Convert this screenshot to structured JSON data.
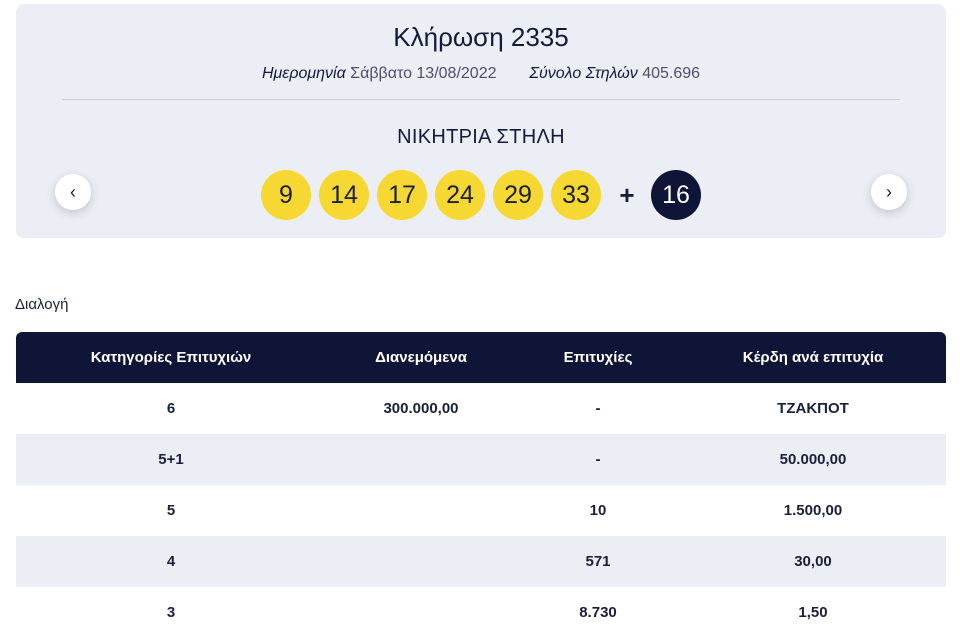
{
  "draw": {
    "title": "Κλήρωση 2335",
    "date_label": "Ημερομηνία",
    "date_value": "Σάββατο 13/08/2022",
    "total_label": "Σύνολο Στηλών",
    "total_value": "405.696",
    "winning_title": "ΝΙΚΗΤΡΙΑ ΣΤΗΛΗ",
    "numbers": [
      "9",
      "14",
      "17",
      "24",
      "29",
      "33"
    ],
    "plus": "+",
    "bonus": "16",
    "prev_icon": "‹",
    "next_icon": "›"
  },
  "section_label": "Διαλογή",
  "table": {
    "headers": [
      "Κατηγορίες Επιτυχιών",
      "Διανεμόμενα",
      "Επιτυχίες",
      "Κέρδη ανά επιτυχία"
    ],
    "rows": [
      [
        "6",
        "300.000,00",
        "-",
        "ΤΖΑΚΠΟΤ"
      ],
      [
        "5+1",
        "",
        "-",
        "50.000,00"
      ],
      [
        "5",
        "",
        "10",
        "1.500,00"
      ],
      [
        "4",
        "",
        "571",
        "30,00"
      ],
      [
        "3",
        "",
        "8.730",
        "1,50"
      ]
    ]
  },
  "colors": {
    "ball_yellow": "#f7d731",
    "bonus_navy": "#0e1536",
    "card_bg": "#eceef5"
  },
  "icons": {
    "prev": "chevron-left-icon",
    "next": "chevron-right-icon"
  }
}
